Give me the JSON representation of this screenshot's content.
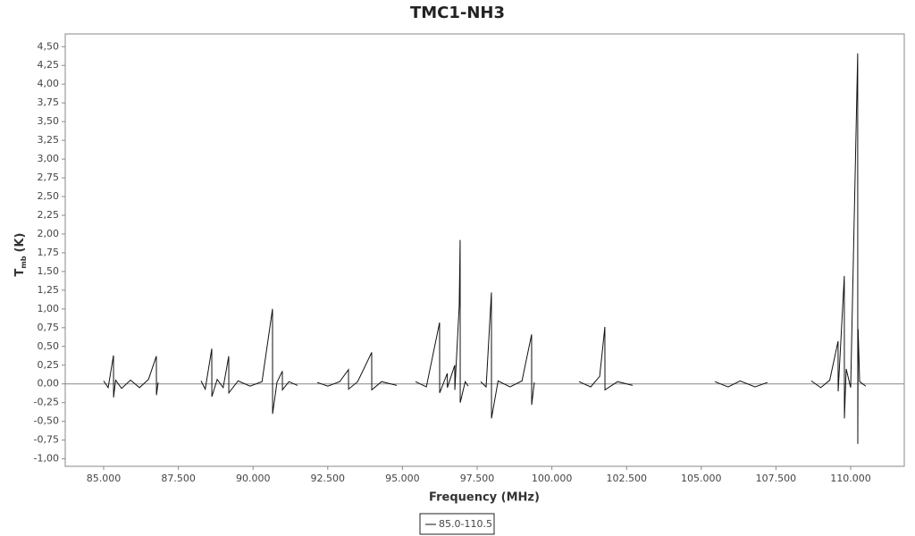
{
  "chart_data": {
    "type": "line",
    "title": "TMC1-NH3",
    "xlabel": "Frequency (MHz)",
    "ylabel": {
      "text": "T",
      "sub": "mb",
      "unit": "(K)"
    },
    "xlim": [
      83714,
      111794
    ],
    "ylim": [
      -1.1,
      4.67
    ],
    "xticks": [
      {
        "value": 85000,
        "label": "85.000"
      },
      {
        "value": 87500,
        "label": "87.500"
      },
      {
        "value": 90000,
        "label": "90.000"
      },
      {
        "value": 92500,
        "label": "92.500"
      },
      {
        "value": 95000,
        "label": "95.000"
      },
      {
        "value": 97500,
        "label": "97.500"
      },
      {
        "value": 100000,
        "label": "100.000"
      },
      {
        "value": 102500,
        "label": "102.500"
      },
      {
        "value": 105000,
        "label": "105.000"
      },
      {
        "value": 107500,
        "label": "107.500"
      },
      {
        "value": 110000,
        "label": "110.000"
      }
    ],
    "yticks": [
      {
        "value": -1,
        "label": "-1,00"
      },
      {
        "value": -0.75,
        "label": "-0,75"
      },
      {
        "value": -0.5,
        "label": "-0,50"
      },
      {
        "value": -0.25,
        "label": "-0,25"
      },
      {
        "value": 0,
        "label": "0,00"
      },
      {
        "value": 0.25,
        "label": "0,25"
      },
      {
        "value": 0.5,
        "label": "0,50"
      },
      {
        "value": 0.75,
        "label": "0,75"
      },
      {
        "value": 1,
        "label": "1,00"
      },
      {
        "value": 1.25,
        "label": "1,25"
      },
      {
        "value": 1.5,
        "label": "1,50"
      },
      {
        "value": 1.75,
        "label": "1,75"
      },
      {
        "value": 2,
        "label": "2,00"
      },
      {
        "value": 2.25,
        "label": "2,25"
      },
      {
        "value": 2.5,
        "label": "2,50"
      },
      {
        "value": 2.75,
        "label": "2,75"
      },
      {
        "value": 3,
        "label": "3,00"
      },
      {
        "value": 3.25,
        "label": "3,25"
      },
      {
        "value": 3.5,
        "label": "3,50"
      },
      {
        "value": 3.75,
        "label": "3,75"
      },
      {
        "value": 4,
        "label": "4,00"
      },
      {
        "value": 4.25,
        "label": "4,25"
      },
      {
        "value": 4.5,
        "label": "4,50"
      }
    ],
    "grid": false,
    "legend": "bottom",
    "x": [
      85000,
      85150,
      85329,
      85332,
      85400,
      85600,
      85900,
      86200,
      86500,
      86764,
      86767,
      86824,
      87500,
      88259,
      88400,
      88618,
      88621,
      88800,
      89000,
      89186,
      89189,
      89500,
      89900,
      90300,
      90651,
      90654,
      90800,
      90980,
      90983,
      91200,
      91488,
      91800,
      92146,
      92500,
      92900,
      93193,
      93196,
      93500,
      93970,
      93973,
      94300,
      94807,
      95100,
      95435,
      95800,
      96242,
      96245,
      96500,
      96503,
      96750,
      96753,
      96900,
      96930,
      96933,
      97100,
      97199,
      97400,
      97618,
      97800,
      97977,
      97980,
      98200,
      98600,
      99000,
      99322,
      99325,
      99412,
      100100,
      100907,
      101300,
      101600,
      101774,
      101777,
      102200,
      102701,
      104000,
      105452,
      105900,
      106300,
      106800,
      107216,
      108000,
      108681,
      109000,
      109300,
      109578,
      109581,
      109787,
      109790,
      109850,
      110000,
      110235,
      110238,
      110250,
      110300,
      110505
    ],
    "series": [
      {
        "name": "85.0-110.5",
        "color": "#111111",
        "values": [
          0.04,
          -0.05,
          0.38,
          -0.18,
          0.05,
          -0.06,
          0.05,
          -0.05,
          0.06,
          0.37,
          -0.15,
          0.02,
          null,
          0.04,
          -0.07,
          0.47,
          -0.17,
          0.06,
          -0.05,
          0.37,
          -0.12,
          0.04,
          -0.03,
          0.03,
          1.0,
          -0.4,
          0.02,
          0.17,
          -0.08,
          0.03,
          -0.02,
          null,
          0.02,
          -0.03,
          0.03,
          0.19,
          -0.07,
          0.03,
          0.42,
          -0.08,
          0.03,
          -0.02,
          null,
          0.03,
          -0.04,
          0.82,
          -0.12,
          0.14,
          -0.05,
          0.25,
          -0.08,
          1.05,
          1.92,
          -0.25,
          0.03,
          -0.03,
          null,
          0.03,
          -0.04,
          1.22,
          -0.46,
          0.04,
          -0.04,
          0.04,
          0.66,
          -0.28,
          0.02,
          null,
          0.03,
          -0.04,
          0.1,
          0.76,
          -0.08,
          0.03,
          -0.02,
          null,
          0.03,
          -0.04,
          0.04,
          -0.04,
          0.02,
          null,
          0.04,
          -0.05,
          0.05,
          0.57,
          -0.1,
          1.44,
          -0.46,
          0.2,
          -0.05,
          4.41,
          -0.8,
          0.73,
          0.03,
          -0.03
        ]
      }
    ]
  }
}
